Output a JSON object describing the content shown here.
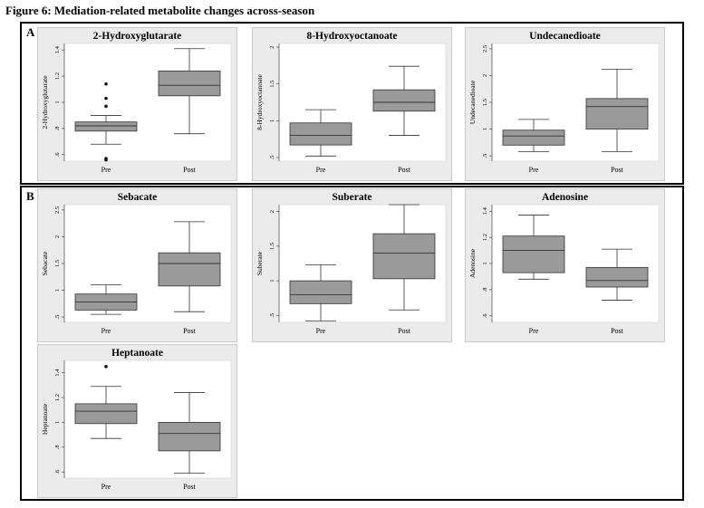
{
  "figure_title": "Figure 6: Mediation-related metabolite changes across-season",
  "sections": {
    "a": {
      "label": "A"
    },
    "b": {
      "label": "B"
    }
  },
  "colors": {
    "panel_bg": "#ebebeb",
    "panel_border": "#c9c9c9",
    "plot_bg": "#ffffff",
    "box_fill": "#9a9a9a",
    "line": "#333333"
  },
  "chart_data": [
    {
      "type": "box",
      "title": "2-Hydroxyglutarate",
      "ylabel": "2-Hydroxyglutarate",
      "categories": [
        "Pre",
        "Post"
      ],
      "ylim": [
        0.55,
        1.45
      ],
      "yticks": [
        0.6,
        0.8,
        1.0,
        1.2,
        1.4
      ],
      "yticklabels": [
        ".6",
        ".8",
        "1",
        "1.2",
        "1.4"
      ],
      "boxes": [
        {
          "category": "Pre",
          "whisker_low": 0.68,
          "q1": 0.78,
          "median": 0.82,
          "q3": 0.85,
          "whisker_high": 0.9,
          "outliers": [
            1.14,
            1.03,
            0.97,
            0.57,
            0.56
          ]
        },
        {
          "category": "Post",
          "whisker_low": 0.76,
          "q1": 1.05,
          "median": 1.13,
          "q3": 1.24,
          "whisker_high": 1.41,
          "outliers": []
        }
      ]
    },
    {
      "type": "box",
      "title": "8-Hydroxyoctanoate",
      "ylabel": "8-Hydroxyoctanoate",
      "categories": [
        "Pre",
        "Post"
      ],
      "ylim": [
        0.45,
        2.05
      ],
      "yticks": [
        0.5,
        1.0,
        1.5,
        2.0
      ],
      "yticklabels": [
        ".5",
        "1",
        "1.5",
        "2"
      ],
      "boxes": [
        {
          "category": "Pre",
          "whisker_low": 0.52,
          "q1": 0.67,
          "median": 0.8,
          "q3": 0.97,
          "whisker_high": 1.15,
          "outliers": []
        },
        {
          "category": "Post",
          "whisker_low": 0.8,
          "q1": 1.13,
          "median": 1.25,
          "q3": 1.42,
          "whisker_high": 1.74,
          "outliers": []
        }
      ]
    },
    {
      "type": "box",
      "title": "Undecanedioate",
      "ylabel": "Undecanedioate",
      "categories": [
        "Pre",
        "Post"
      ],
      "ylim": [
        0.4,
        2.6
      ],
      "yticks": [
        0.5,
        1.0,
        1.5,
        2.0,
        2.5
      ],
      "yticklabels": [
        ".5",
        "1",
        "1.5",
        "2",
        "2.5"
      ],
      "boxes": [
        {
          "category": "Pre",
          "whisker_low": 0.58,
          "q1": 0.7,
          "median": 0.87,
          "q3": 0.98,
          "whisker_high": 1.18,
          "outliers": []
        },
        {
          "category": "Post",
          "whisker_low": 0.58,
          "q1": 1.0,
          "median": 1.42,
          "q3": 1.57,
          "whisker_high": 2.12,
          "outliers": []
        }
      ]
    },
    {
      "type": "box",
      "title": "Sebacate",
      "ylabel": "Sebacate",
      "categories": [
        "Pre",
        "Post"
      ],
      "ylim": [
        0.4,
        2.6
      ],
      "yticks": [
        0.5,
        1.0,
        1.5,
        2.0,
        2.5
      ],
      "yticklabels": [
        ".5",
        "1",
        "1.5",
        "2",
        "2.5"
      ],
      "boxes": [
        {
          "category": "Pre",
          "whisker_low": 0.55,
          "q1": 0.63,
          "median": 0.78,
          "q3": 0.93,
          "whisker_high": 1.1,
          "outliers": []
        },
        {
          "category": "Post",
          "whisker_low": 0.6,
          "q1": 1.08,
          "median": 1.5,
          "q3": 1.7,
          "whisker_high": 2.28,
          "outliers": []
        }
      ]
    },
    {
      "type": "box",
      "title": "Suberate",
      "ylabel": "Suberate",
      "categories": [
        "Pre",
        "Post"
      ],
      "ylim": [
        0.4,
        2.1
      ],
      "yticks": [
        0.5,
        1.0,
        1.5,
        2.0
      ],
      "yticklabels": [
        ".5",
        "1",
        "1.5",
        "2"
      ],
      "boxes": [
        {
          "category": "Pre",
          "whisker_low": 0.42,
          "q1": 0.67,
          "median": 0.8,
          "q3": 1.0,
          "whisker_high": 1.23,
          "outliers": []
        },
        {
          "category": "Post",
          "whisker_low": 0.58,
          "q1": 1.03,
          "median": 1.4,
          "q3": 1.68,
          "whisker_high": 2.1,
          "outliers": []
        }
      ]
    },
    {
      "type": "box",
      "title": "Adenosine",
      "ylabel": "Adenosine",
      "categories": [
        "Pre",
        "Post"
      ],
      "ylim": [
        0.55,
        1.45
      ],
      "yticks": [
        0.6,
        0.8,
        1.0,
        1.2,
        1.4
      ],
      "yticklabels": [
        ".6",
        ".8",
        "1",
        "1.2",
        "1.4"
      ],
      "boxes": [
        {
          "category": "Pre",
          "whisker_low": 0.88,
          "q1": 0.93,
          "median": 1.1,
          "q3": 1.21,
          "whisker_high": 1.37,
          "outliers": []
        },
        {
          "category": "Post",
          "whisker_low": 0.72,
          "q1": 0.82,
          "median": 0.87,
          "q3": 0.97,
          "whisker_high": 1.11,
          "outliers": []
        }
      ]
    },
    {
      "type": "box",
      "title": "Heptanoate",
      "ylabel": "Heptanoate",
      "categories": [
        "Pre",
        "Post"
      ],
      "ylim": [
        0.55,
        1.5
      ],
      "yticks": [
        0.6,
        0.8,
        1.0,
        1.2,
        1.4
      ],
      "yticklabels": [
        ".6",
        ".8",
        "1",
        "1.2",
        "1.4"
      ],
      "boxes": [
        {
          "category": "Pre",
          "whisker_low": 0.87,
          "q1": 0.99,
          "median": 1.09,
          "q3": 1.15,
          "whisker_high": 1.29,
          "outliers": [
            1.45
          ]
        },
        {
          "category": "Post",
          "whisker_low": 0.59,
          "q1": 0.77,
          "median": 0.91,
          "q3": 1.0,
          "whisker_high": 1.24,
          "outliers": []
        }
      ]
    }
  ]
}
